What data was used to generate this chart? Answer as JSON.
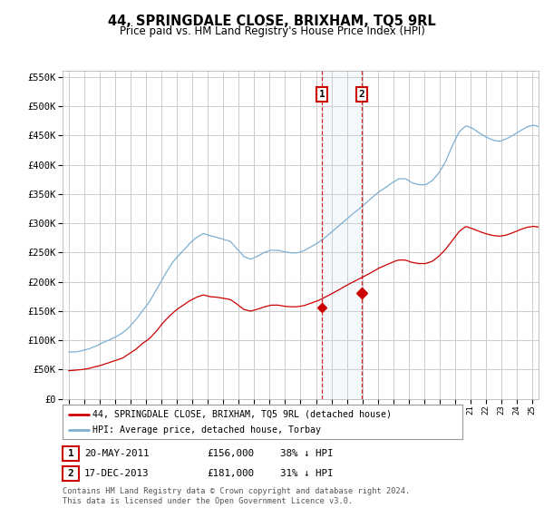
{
  "title": "44, SPRINGDALE CLOSE, BRIXHAM, TQ5 9RL",
  "subtitle": "Price paid vs. HM Land Registry's House Price Index (HPI)",
  "legend_line1": "44, SPRINGDALE CLOSE, BRIXHAM, TQ5 9RL (detached house)",
  "legend_line2": "HPI: Average price, detached house, Torbay",
  "footnote": "Contains HM Land Registry data © Crown copyright and database right 2024.\nThis data is licensed under the Open Government Licence v3.0.",
  "transaction1": {
    "label": "1",
    "date": "20-MAY-2011",
    "price": "£156,000",
    "hpi": "38% ↓ HPI"
  },
  "transaction2": {
    "label": "2",
    "date": "17-DEC-2013",
    "price": "£181,000",
    "hpi": "31% ↓ HPI"
  },
  "vline1_x": 2011.38,
  "vline2_x": 2013.96,
  "red_color": "#cc0000",
  "blue_color": "#7bafd4",
  "background_color": "#ffffff",
  "grid_color": "#cccccc",
  "ylim": [
    0,
    560000
  ],
  "xlim_start": 1994.6,
  "xlim_end": 2025.4,
  "point1_x": 2011.38,
  "point1_y": 156000,
  "point2_x": 2013.96,
  "point2_y": 181000
}
